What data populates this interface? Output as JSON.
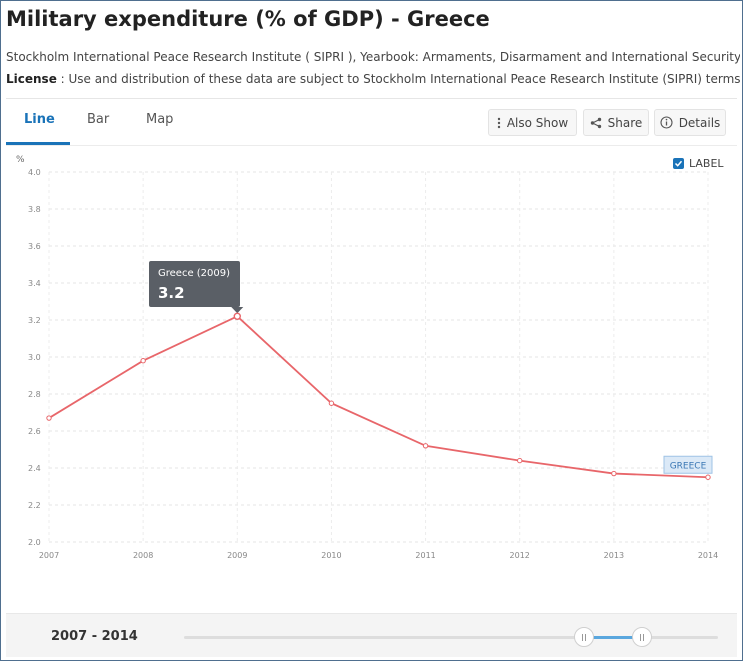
{
  "page": {
    "title": "Military expenditure (% of GDP) - Greece",
    "source": "Stockholm International Peace Research Institute ( SIPRI ), Yearbook: Armaments, Disarmament and International Security.",
    "license_label": "License",
    "license_text": " : Use and distribution of these data are subject to Stockholm International Peace Research Institute (SIPRI) terms and cond"
  },
  "tabs": [
    {
      "label": "Line",
      "active": true
    },
    {
      "label": "Bar",
      "active": false
    },
    {
      "label": "Map",
      "active": false
    }
  ],
  "toolbar": {
    "also_show": "Also Show",
    "share": "Share",
    "details": "Details"
  },
  "label_toggle": {
    "text": "LABEL",
    "checked": true
  },
  "footer": {
    "range": "2007 - 2014"
  },
  "colors": {
    "line": "#e8666a",
    "accent": "#1a73b8",
    "tooltip_bg": "#5a5f66",
    "series_label_bg": "#dbe9f7"
  },
  "chart_data": {
    "type": "line",
    "title": "Military expenditure (% of GDP) - Greece",
    "ylabel": "%",
    "xlabel": "",
    "x": [
      2007,
      2008,
      2009,
      2010,
      2011,
      2012,
      2013,
      2014
    ],
    "series": [
      {
        "name": "GREECE",
        "values": [
          2.67,
          2.98,
          3.22,
          2.75,
          2.52,
          2.44,
          2.37,
          2.35
        ]
      }
    ],
    "ylim": [
      2.0,
      4.0
    ],
    "yticks": [
      "2.0",
      "2.2",
      "2.4",
      "2.6",
      "2.8",
      "3.0",
      "3.2",
      "3.4",
      "3.6",
      "3.8",
      "4.0"
    ],
    "grid": true,
    "tooltip": {
      "title": "Greece (2009)",
      "value": "3.2",
      "index": 2
    },
    "series_label": "GREECE"
  }
}
